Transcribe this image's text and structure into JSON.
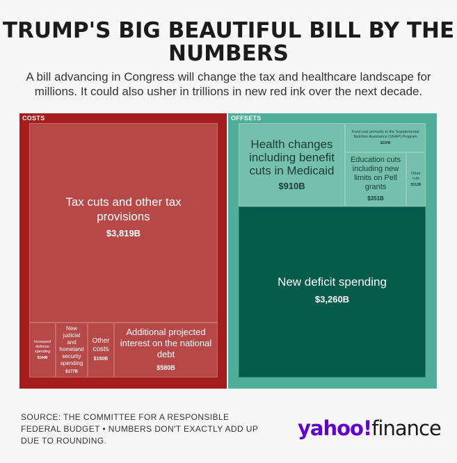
{
  "header": {
    "title_line1": "TRUMP'S BIG BEAUTIFUL BILL BY THE",
    "title_line2": "NUMBERS",
    "subtitle": "A bill advancing in Congress will change the tax and healthcare landscape for millions. It could also usher in trillions in new red ink over the next decade."
  },
  "chart_data": {
    "type": "treemap",
    "groups": [
      {
        "name": "COSTS",
        "color": "#a51c1c",
        "items": [
          {
            "label": "Tax cuts and other tax provisions",
            "value_label": "$3,819B",
            "value": 3819
          },
          {
            "label": "Additional projected interest on the national debt",
            "value_label": "$580B",
            "value": 580
          },
          {
            "label": "New judicial and homeland security spending",
            "value_label": "$177B",
            "value": 177
          },
          {
            "label": "Other costs",
            "value_label": "$150B",
            "value": 150
          },
          {
            "label": "Increased defense spending",
            "value_label": "$144B",
            "value": 144
          }
        ]
      },
      {
        "name": "OFFSETS",
        "color": "#4fae98",
        "items": [
          {
            "label": "Health changes including benefit cuts in Medicaid",
            "value_label": "$910B",
            "value": 910
          },
          {
            "label": "Food cuts primarily to the Supplemental Nutrition Assistance (SNAP) Program",
            "value_label": "$230B",
            "value": 230
          },
          {
            "label": "Education cuts including new limits on Pell grants",
            "value_label": "$351B",
            "value": 351
          },
          {
            "label": "Other cuts",
            "value_label": "$112B",
            "value": 112
          },
          {
            "label": "New deficit spending",
            "value_label": "$3,260B",
            "value": 3260
          }
        ]
      }
    ]
  },
  "footer": {
    "source": "SOURCE: THE COMMITTEE FOR A RESPONSIBLE FEDERAL BUDGET • NUMBERS DON'T EXACTLY ADD UP DUE TO ROUNDING.",
    "logo_yahoo": "yahoo!",
    "logo_finance": "finance"
  }
}
